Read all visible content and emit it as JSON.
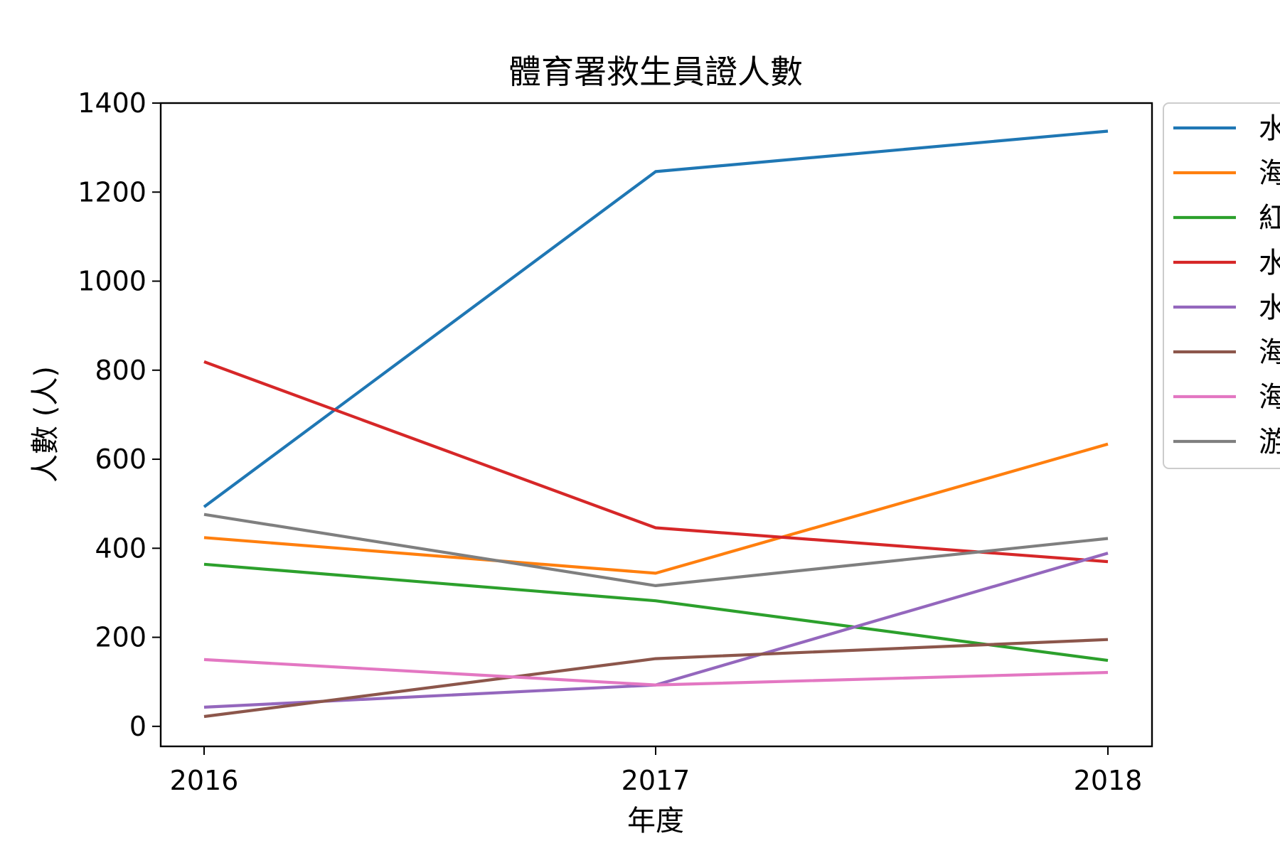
{
  "chart_data": {
    "type": "line",
    "title": "體育署救生員證人數",
    "xlabel": "年度",
    "ylabel": "人數 (人)",
    "categories": [
      "2016",
      "2017",
      "2018"
    ],
    "yticks": [
      "0",
      "200",
      "400",
      "600",
      "800",
      "1000",
      "1200",
      "1400"
    ],
    "ylim": [
      -45,
      1400
    ],
    "grid": false,
    "legend_position": "outside-right",
    "series": [
      {
        "name": "水",
        "color": "#1f77b4",
        "values": [
          493,
          1246,
          1337
        ]
      },
      {
        "name": "海",
        "color": "#ff7f0e",
        "values": [
          424,
          344,
          634
        ]
      },
      {
        "name": "紅",
        "color": "#2ca02c",
        "values": [
          364,
          282,
          148
        ]
      },
      {
        "name": "水",
        "color": "#d62728",
        "values": [
          819,
          446,
          370
        ]
      },
      {
        "name": "水",
        "color": "#9467bd",
        "values": [
          43,
          93,
          389
        ]
      },
      {
        "name": "海",
        "color": "#8c564b",
        "values": [
          22,
          152,
          195
        ]
      },
      {
        "name": "海",
        "color": "#e377c2",
        "values": [
          150,
          93,
          121
        ]
      },
      {
        "name": "游",
        "color": "#7f7f7f",
        "values": [
          476,
          316,
          422
        ]
      }
    ]
  }
}
